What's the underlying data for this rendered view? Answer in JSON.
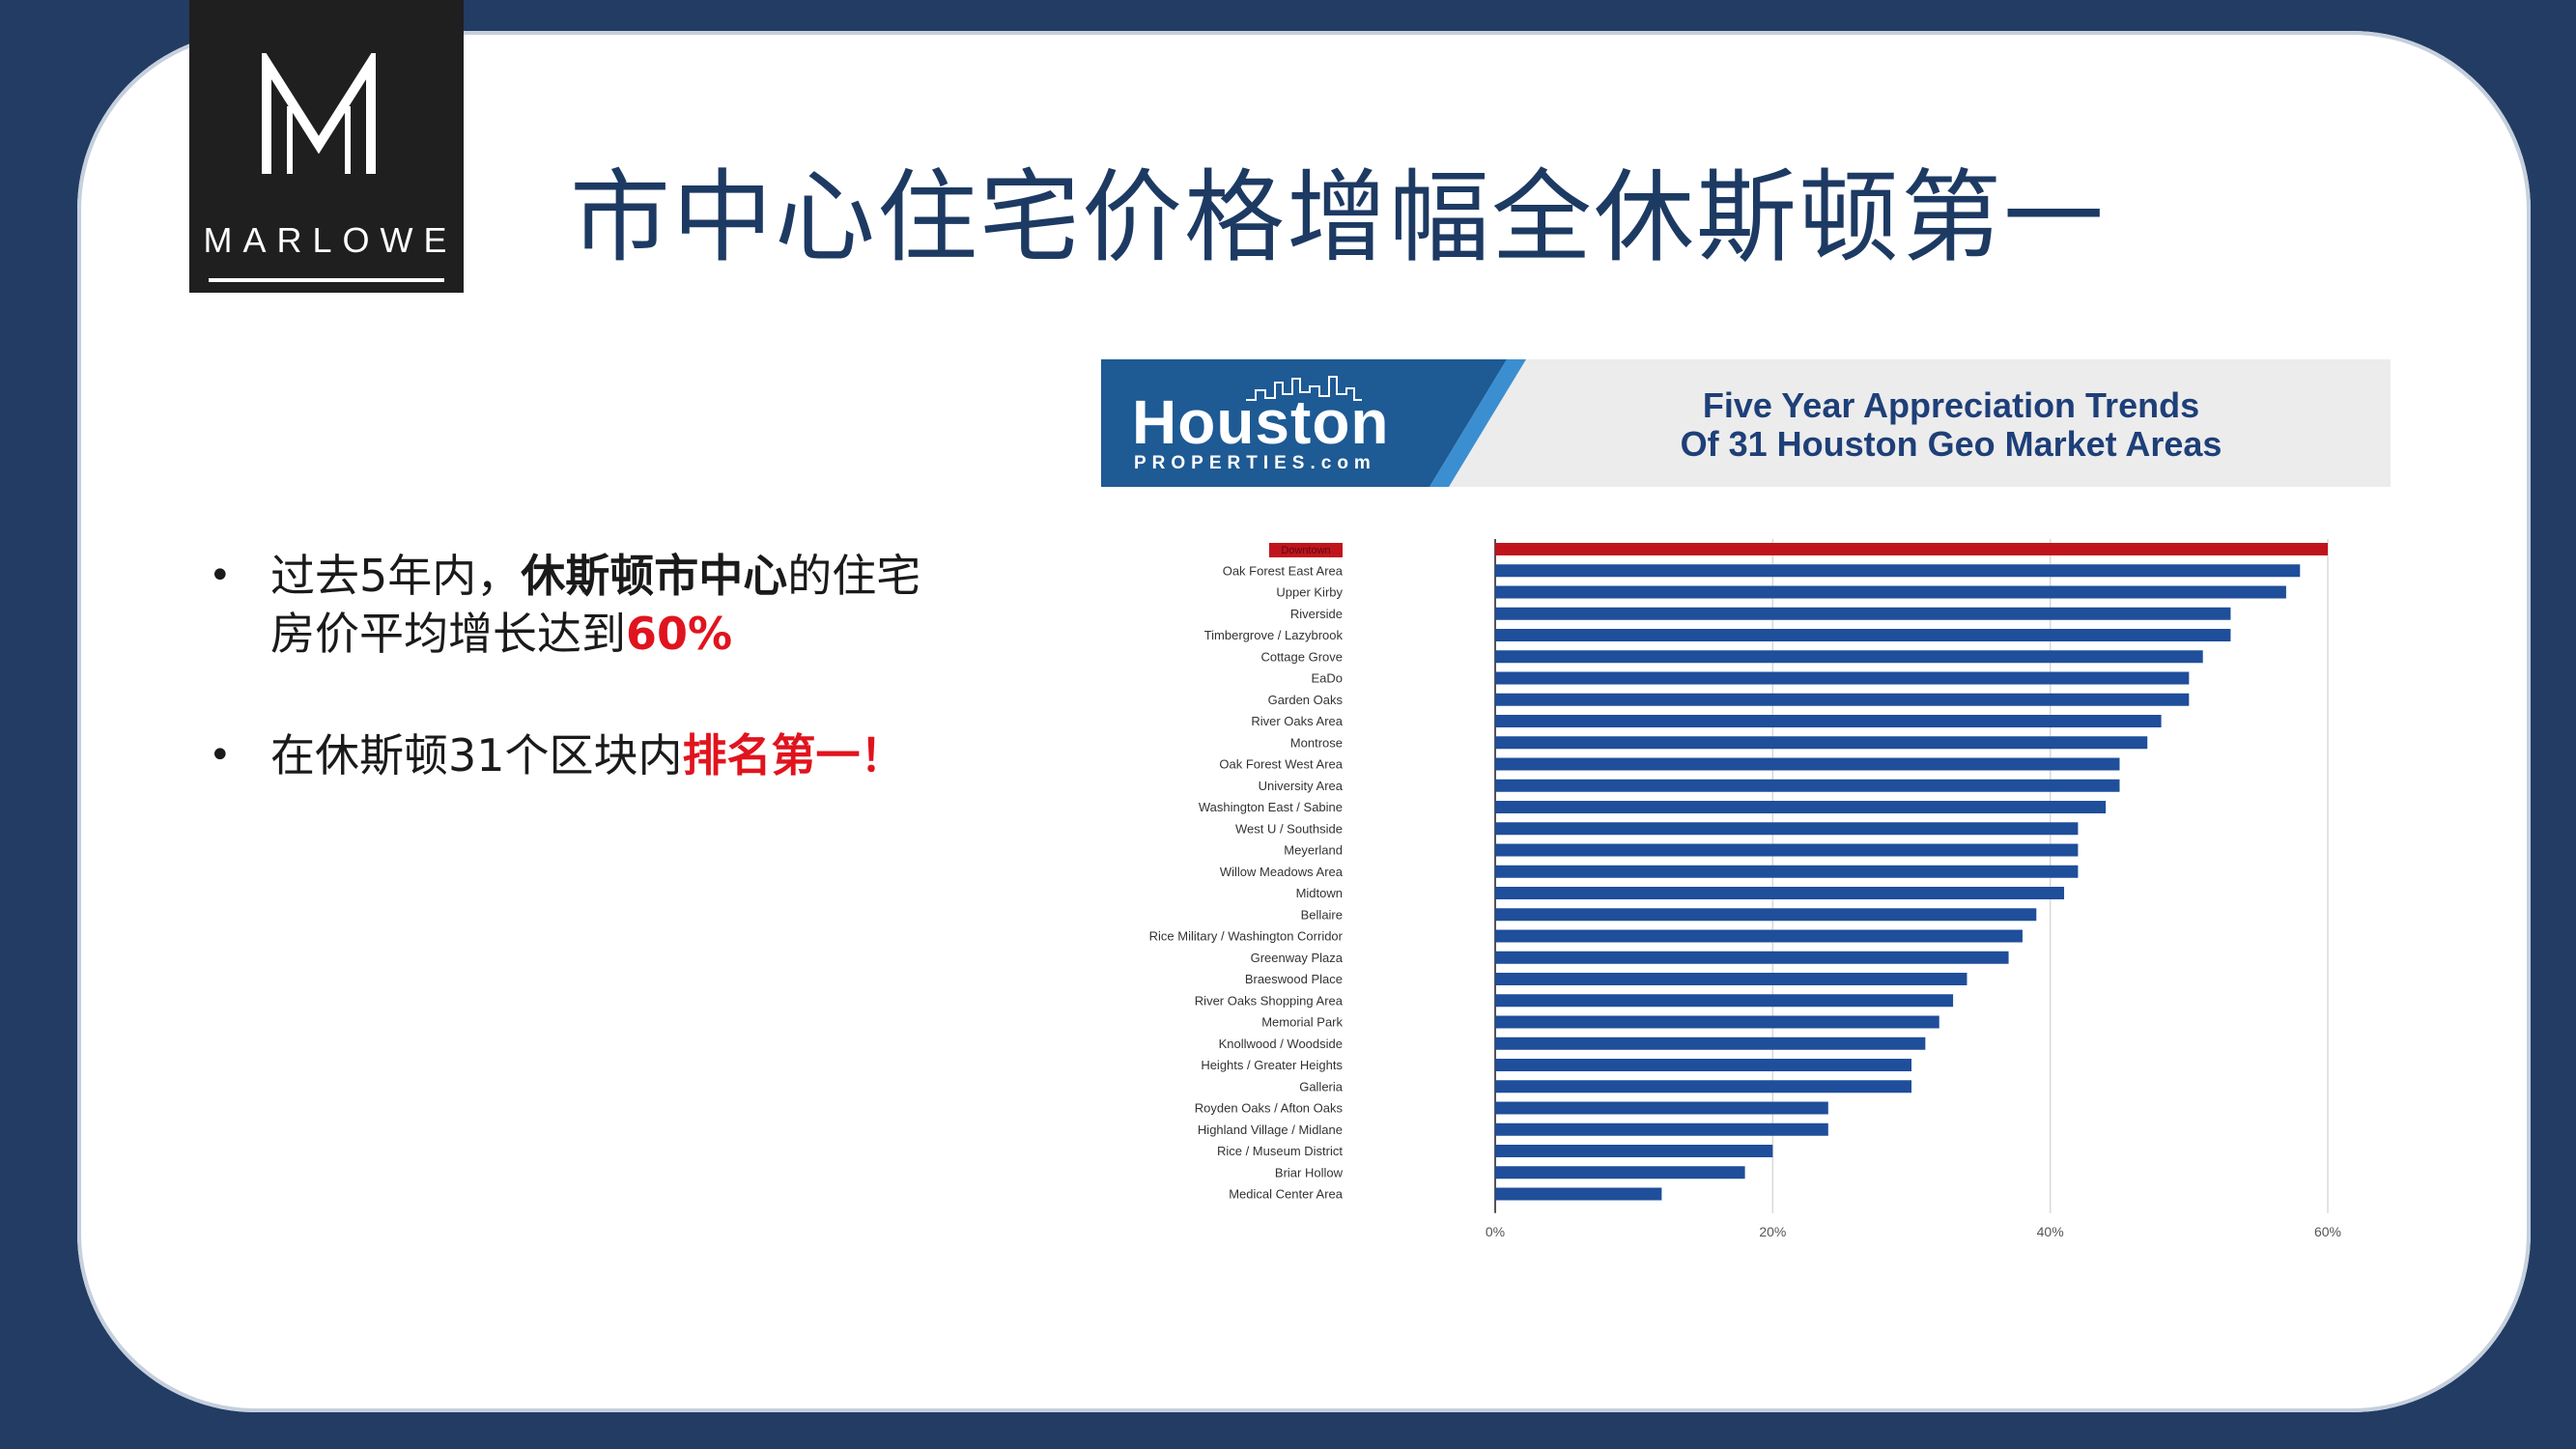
{
  "slide": {
    "title": "市中心住宅价格增幅全休斯顿第一",
    "logo": {
      "wordmark": "MARLOWE"
    },
    "bullets": [
      {
        "parts": [
          {
            "text": "过去5年内，",
            "style": "normal"
          },
          {
            "text": "休斯顿市中心",
            "style": "bold"
          },
          {
            "text": "的住宅",
            "style": "normal"
          }
        ],
        "line2": [
          {
            "text": "房价平均增长达到",
            "style": "normal"
          },
          {
            "text": "60%",
            "style": "red"
          }
        ]
      },
      {
        "parts": [
          {
            "text": "在休斯顿31个区块内",
            "style": "normal"
          },
          {
            "text": "排名第一！",
            "style": "red"
          }
        ]
      }
    ]
  },
  "banner": {
    "brand": "Houston",
    "brand_sub": "PROPERTIES.com",
    "title_line1": "Five Year Appreciation Trends",
    "title_line2": "Of 31 Houston Geo Market Areas"
  },
  "colors": {
    "bar": "#1f4e9a",
    "highlight": "#c0141c",
    "navy": "#223c63",
    "title": "#1d3a63"
  },
  "chart_data": {
    "type": "bar",
    "orientation": "horizontal",
    "title": "Five Year Appreciation Trends Of 31 Houston Geo Market Areas",
    "categories": [
      "Downtown",
      "Oak Forest East Area",
      "Upper Kirby",
      "Riverside",
      "Timbergrove / Lazybrook",
      "Cottage Grove",
      "EaDo",
      "Garden Oaks",
      "River Oaks Area",
      "Montrose",
      "Oak Forest West Area",
      "University Area",
      "Washington East / Sabine",
      "West U / Southside",
      "Meyerland",
      "Willow Meadows Area",
      "Midtown",
      "Bellaire",
      "Rice Military / Washington Corridor",
      "Greenway Plaza",
      "Braeswood Place",
      "River Oaks Shopping Area",
      "Memorial Park",
      "Knollwood / Woodside",
      "Heights / Greater Heights",
      "Galleria",
      "Royden Oaks / Afton Oaks",
      "Highland Village / Midlane",
      "Rice / Museum District",
      "Briar Hollow",
      "Medical Center Area"
    ],
    "values": [
      60,
      58,
      57,
      53,
      53,
      51,
      50,
      50,
      48,
      47,
      45,
      45,
      44,
      42,
      42,
      42,
      41,
      39,
      38,
      37,
      34,
      33,
      32,
      31,
      30,
      30,
      24,
      24,
      20,
      18,
      12
    ],
    "unit": "%",
    "xlim": [
      0,
      60
    ],
    "xticks": [
      "0%",
      "20%",
      "40%",
      "60%"
    ],
    "highlight_index": 0,
    "grid": "vertical"
  }
}
